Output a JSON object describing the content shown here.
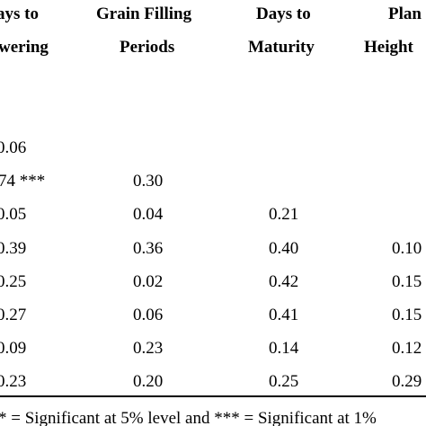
{
  "headers": {
    "col1_line1": "ays to",
    "col1_line2": "wering",
    "col2_line1": "Grain Filling",
    "col2_line2": "Periods",
    "col3_line1": "Days to",
    "col3_line2": "Maturity",
    "col4_line1": "Plan",
    "col4_line2": "Height"
  },
  "rows": [
    {
      "c1": "0.06",
      "c2": "",
      "c3": "",
      "c4": ""
    },
    {
      "c1": "74 ***",
      "c2": "0.30",
      "c3": "",
      "c4": ""
    },
    {
      "c1": "0.05",
      "c2": "0.04",
      "c3": "0.21",
      "c4": ""
    },
    {
      "c1": "0.39",
      "c2": "0.36",
      "c3": "0.40",
      "c4": "0.10"
    },
    {
      "c1": "0.25",
      "c2": "0.02",
      "c3": "0.42",
      "c4": "0.15"
    },
    {
      "c1": "0.27",
      "c2": "0.06",
      "c3": "0.41",
      "c4": "0.15"
    },
    {
      "c1": "0.09",
      "c2": "0.23",
      "c3": "0.14",
      "c4": "0.12"
    },
    {
      "c1": "0.23",
      "c2": "0.20",
      "c3": "0.25",
      "c4": "0.29"
    }
  ],
  "footnote": "* = Significant at 5% level and *** = Significant at 1%"
}
